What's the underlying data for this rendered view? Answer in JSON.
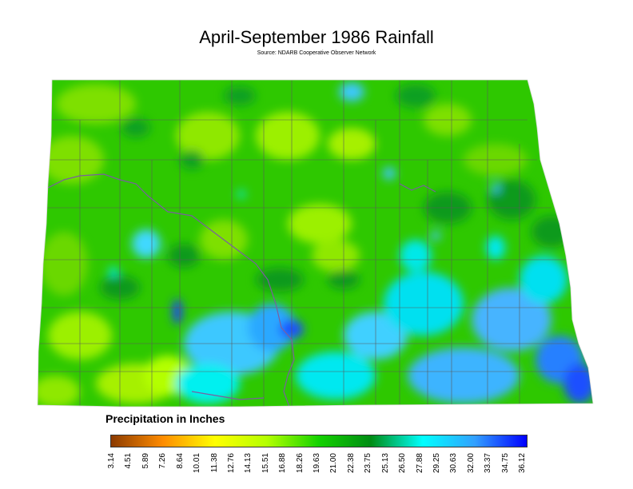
{
  "title": "April-September 1986 Rainfall",
  "source": "Source: NDARB Cooperative Observer Network",
  "legend": {
    "title": "Precipitation in Inches",
    "ticks": [
      "3.14",
      "4.51",
      "5.89",
      "7.26",
      "8.64",
      "10.01",
      "11.38",
      "12.76",
      "14.13",
      "15.51",
      "16.88",
      "18.26",
      "19.63",
      "21.00",
      "22.38",
      "23.75",
      "25.13",
      "26.50",
      "27.88",
      "29.25",
      "30.63",
      "32.00",
      "33.37",
      "34.75",
      "36.12"
    ],
    "colors": {
      "low": "#8b3a00",
      "orange": "#ff8c00",
      "yellow": "#ffff00",
      "yellow_green": "#b4ff00",
      "green": "#14d200",
      "dark_green": "#008c14",
      "cyan": "#00ffff",
      "sky": "#32a0ff",
      "high": "#0000ff"
    }
  },
  "map": {
    "base_color": "#2ec800",
    "county_line_color": "#5a5a5a",
    "river_color": "#7a5fa0"
  }
}
